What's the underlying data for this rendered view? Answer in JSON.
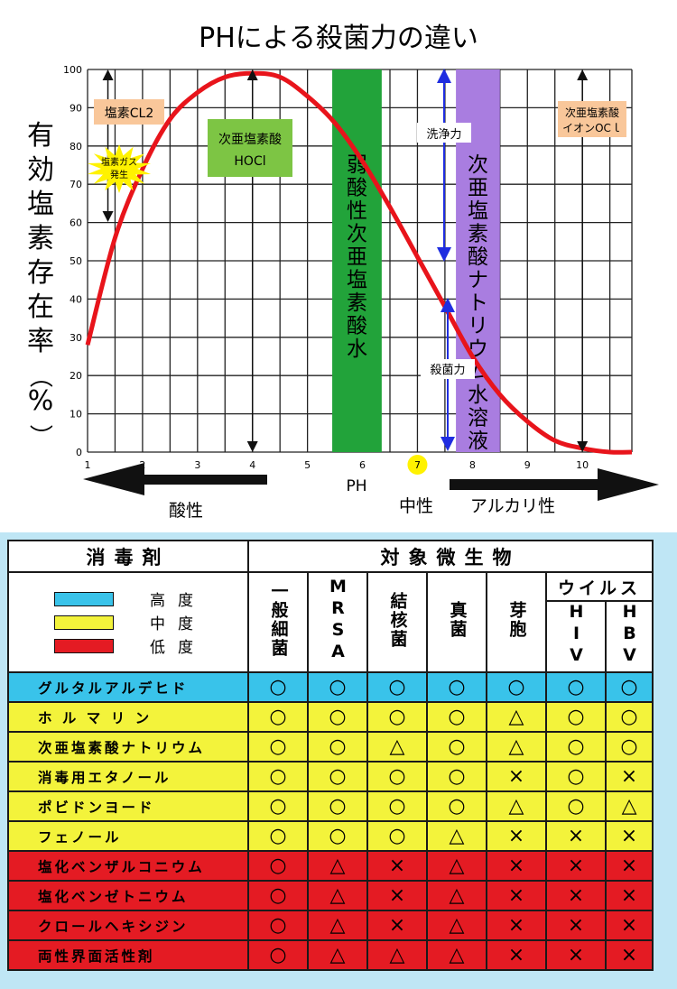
{
  "chart_data": {
    "type": "line",
    "title": "PHによる殺菌力の違い",
    "ylabel": "有効塩素存在率（%）",
    "xlabel": "PH",
    "x_ticks": [
      "1",
      "2",
      "3",
      "4",
      "5",
      "6",
      "7",
      "8",
      "9",
      "10"
    ],
    "y_ticks": [
      "0",
      "10",
      "20",
      "30",
      "40",
      "50",
      "60",
      "70",
      "80",
      "90",
      "100"
    ],
    "xlim": [
      1,
      10.9
    ],
    "ylim": [
      0,
      100
    ],
    "grid": true,
    "curve_color": "#e8141b",
    "curve": {
      "x": [
        1,
        1.5,
        2,
        2.5,
        3,
        3.5,
        4,
        4.5,
        5,
        5.5,
        6,
        6.5,
        7,
        7.5,
        8,
        8.5,
        9,
        9.5,
        10,
        10.5,
        10.9
      ],
      "y": [
        28,
        56,
        74,
        87,
        94,
        98,
        99,
        98,
        93,
        86,
        76,
        64,
        51,
        38,
        25,
        15,
        8,
        3,
        1,
        0,
        0
      ]
    },
    "bands": [
      {
        "label": "弱酸性次亜塩素酸水",
        "x_from": 5.45,
        "x_to": 6.35,
        "color": "#22a33a"
      },
      {
        "label": "次亜塩素酸ナトリウム水溶液",
        "x_from": 7.7,
        "x_to": 8.5,
        "color": "#a97de0"
      }
    ],
    "annotations": [
      {
        "label": "塩素CL2",
        "color": "#f9c79a"
      },
      {
        "label": "塩素ガス発生",
        "color": "#fff200"
      },
      {
        "label_line1": "次亜塩素酸",
        "label_line2": "HOCl",
        "color": "#7dc544"
      },
      {
        "label_line1": "次亜塩素酸",
        "label_line2": "イオンOCｌ",
        "color": "#f9c79a"
      },
      {
        "label": "洗浄力"
      },
      {
        "label": "殺菌力"
      }
    ],
    "ph7_marker": {
      "label": "7",
      "color": "#fff200"
    },
    "arrows": {
      "acid": "酸性",
      "neutral": "中性",
      "alkali": "アルカリ性"
    }
  },
  "table": {
    "title_left": "消毒剤",
    "title_right": "対象微生物",
    "legend": [
      {
        "label": "高度",
        "color": "#39c3ea"
      },
      {
        "label": "中度",
        "color": "#f3f33b"
      },
      {
        "label": "低度",
        "color": "#e41b23"
      }
    ],
    "columns": [
      "一般細菌",
      "MRSA",
      "結核菌",
      "真菌",
      "芽胞",
      "HIV",
      "HBV"
    ],
    "virus_group": "ウイルス",
    "rows": [
      {
        "name": "グルタルアルデヒド",
        "level": "high",
        "marks": [
          "○",
          "○",
          "○",
          "○",
          "○",
          "○",
          "○"
        ]
      },
      {
        "name": "ホ ル マ リ ン",
        "level": "mid",
        "marks": [
          "○",
          "○",
          "○",
          "○",
          "△",
          "○",
          "○"
        ]
      },
      {
        "name": "次亜塩素酸ナトリウム",
        "level": "mid",
        "marks": [
          "○",
          "○",
          "△",
          "○",
          "△",
          "○",
          "○"
        ]
      },
      {
        "name": "消毒用エタノール",
        "level": "mid",
        "marks": [
          "○",
          "○",
          "○",
          "○",
          "×",
          "○",
          "×"
        ]
      },
      {
        "name": "ポビドンヨード",
        "level": "mid",
        "marks": [
          "○",
          "○",
          "○",
          "○",
          "△",
          "○",
          "△"
        ]
      },
      {
        "name": "フェノール",
        "level": "mid",
        "marks": [
          "○",
          "○",
          "○",
          "△",
          "×",
          "×",
          "×"
        ]
      },
      {
        "name": "塩化ベンザルコニウム",
        "level": "low",
        "marks": [
          "○",
          "△",
          "×",
          "△",
          "×",
          "×",
          "×"
        ]
      },
      {
        "name": "塩化ベンゼトニウム",
        "level": "low",
        "marks": [
          "○",
          "△",
          "×",
          "△",
          "×",
          "×",
          "×"
        ]
      },
      {
        "name": "クロールヘキシジン",
        "level": "low",
        "marks": [
          "○",
          "△",
          "×",
          "△",
          "×",
          "×",
          "×"
        ]
      },
      {
        "name": "両性界面活性剤",
        "level": "low",
        "marks": [
          "○",
          "△",
          "△",
          "△",
          "×",
          "×",
          "×"
        ]
      }
    ]
  }
}
